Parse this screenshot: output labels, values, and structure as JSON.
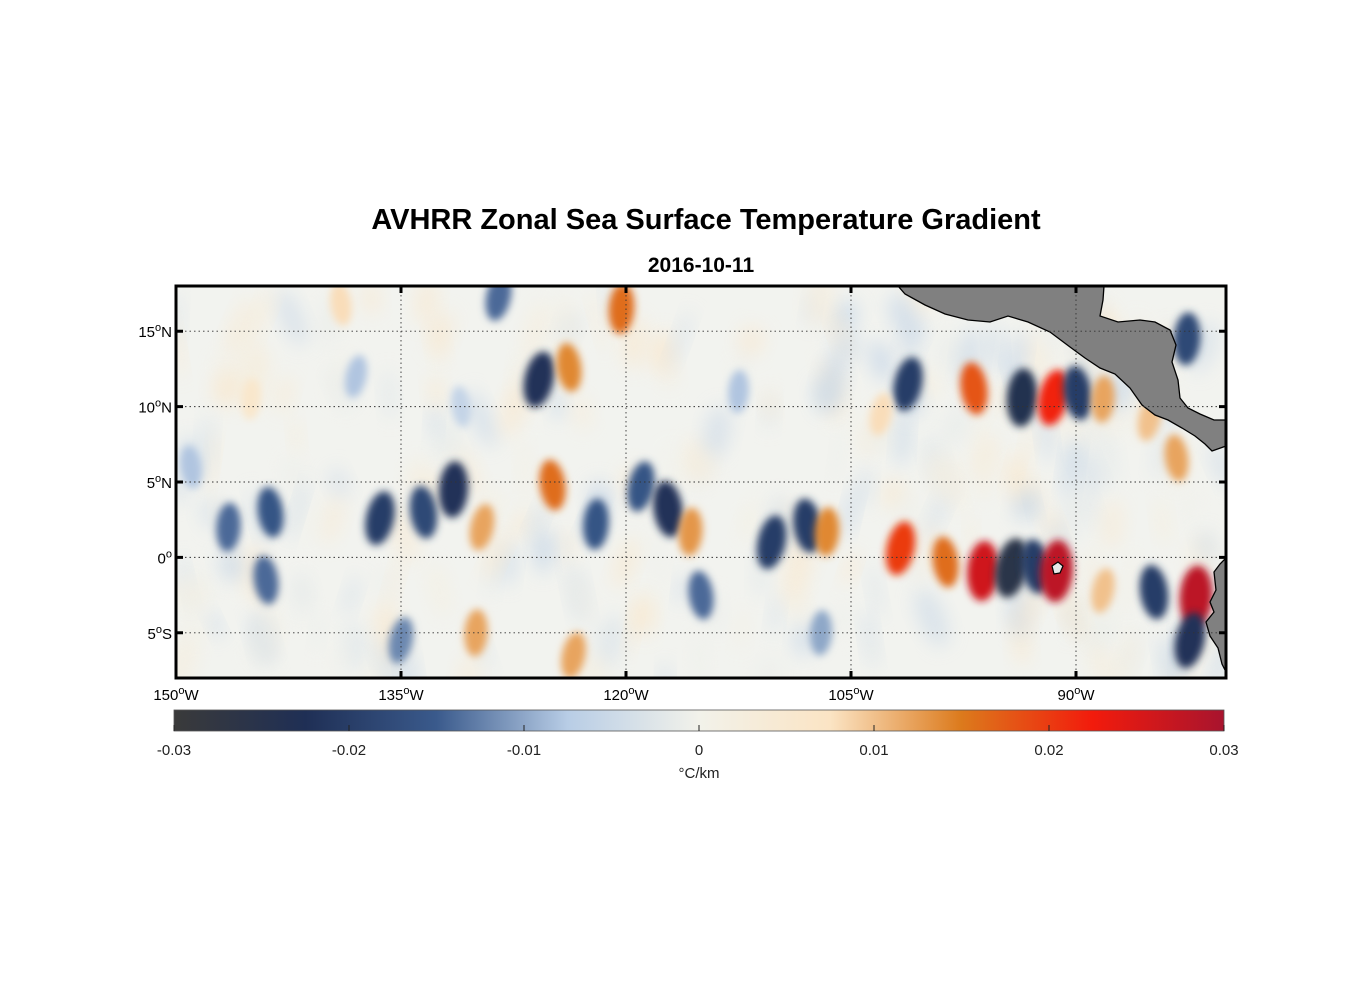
{
  "figure": {
    "title": "AVHRR Zonal Sea Surface Temperature Gradient",
    "subtitle": "2016-10-11"
  },
  "axes": {
    "lat_ticks": [
      {
        "value": 15,
        "text": "15",
        "hemi": "N"
      },
      {
        "value": 10,
        "text": "10",
        "hemi": "N"
      },
      {
        "value": 5,
        "text": "5",
        "hemi": "N"
      },
      {
        "value": 0,
        "text": "0",
        "hemi": ""
      },
      {
        "value": -5,
        "text": "5",
        "hemi": "S"
      }
    ],
    "lon_ticks": [
      {
        "value": -150,
        "text": "150",
        "hemi": "W"
      },
      {
        "value": -135,
        "text": "135",
        "hemi": "W"
      },
      {
        "value": -120,
        "text": "120",
        "hemi": "W"
      },
      {
        "value": -105,
        "text": "105",
        "hemi": "W"
      },
      {
        "value": -90,
        "text": "90",
        "hemi": "W"
      }
    ],
    "lon_range": [
      -150,
      -80
    ],
    "lat_range": [
      -8,
      18
    ],
    "grid": "dotted"
  },
  "colorbar": {
    "ticks": [
      {
        "value": -0.03,
        "text": "-0.03"
      },
      {
        "value": -0.02,
        "text": "-0.02"
      },
      {
        "value": -0.01,
        "text": "-0.01"
      },
      {
        "value": 0,
        "text": "0"
      },
      {
        "value": 0.01,
        "text": "0.01"
      },
      {
        "value": 0.02,
        "text": "0.02"
      },
      {
        "value": 0.03,
        "text": "0.03"
      }
    ],
    "range": [
      -0.03,
      0.03
    ],
    "unit": "°C/km",
    "colors": [
      "#3a3a3a",
      "#1f2f55",
      "#3a5a8c",
      "#b8cde6",
      "#f2f2ea",
      "#fbe4c4",
      "#dc7a1c",
      "#f21b0c",
      "#a8142e"
    ]
  },
  "land_color": "#808080",
  "features": [
    {
      "lon": -125.8,
      "lat": 11.8,
      "v": -0.022
    },
    {
      "lon": -123.8,
      "lat": 12.6,
      "v": 0.014
    },
    {
      "lon": -120.3,
      "lat": 16.5,
      "v": 0.016
    },
    {
      "lon": -128.5,
      "lat": 17.3,
      "v": -0.014
    },
    {
      "lon": -139.0,
      "lat": 16.8,
      "v": 0.008
    },
    {
      "lon": -112.5,
      "lat": 11.0,
      "v": -0.008
    },
    {
      "lon": -101.2,
      "lat": 11.5,
      "v": -0.02
    },
    {
      "lon": -96.8,
      "lat": 11.2,
      "v": 0.018
    },
    {
      "lon": -93.6,
      "lat": 10.6,
      "v": -0.024
    },
    {
      "lon": -91.5,
      "lat": 10.6,
      "v": 0.022
    },
    {
      "lon": -89.9,
      "lat": 10.9,
      "v": -0.02
    },
    {
      "lon": -88.2,
      "lat": 10.5,
      "v": 0.012
    },
    {
      "lon": -85.1,
      "lat": 9.2,
      "v": 0.01
    },
    {
      "lon": -83.3,
      "lat": 6.6,
      "v": 0.012
    },
    {
      "lon": -82.6,
      "lat": 14.5,
      "v": -0.018
    },
    {
      "lon": -103.0,
      "lat": 9.5,
      "v": 0.008
    },
    {
      "lon": -143.7,
      "lat": 3.0,
      "v": -0.016
    },
    {
      "lon": -146.5,
      "lat": 2.0,
      "v": -0.014
    },
    {
      "lon": -136.4,
      "lat": 2.6,
      "v": -0.02
    },
    {
      "lon": -133.5,
      "lat": 3.0,
      "v": -0.018
    },
    {
      "lon": -131.5,
      "lat": 4.5,
      "v": -0.022
    },
    {
      "lon": -129.6,
      "lat": 2.0,
      "v": 0.012
    },
    {
      "lon": -124.9,
      "lat": 4.8,
      "v": 0.016
    },
    {
      "lon": -122.0,
      "lat": 2.2,
      "v": -0.016
    },
    {
      "lon": -119.0,
      "lat": 4.7,
      "v": -0.016
    },
    {
      "lon": -117.2,
      "lat": 3.2,
      "v": -0.022
    },
    {
      "lon": -115.7,
      "lat": 1.7,
      "v": 0.013
    },
    {
      "lon": -110.3,
      "lat": 1.0,
      "v": -0.02
    },
    {
      "lon": -107.9,
      "lat": 2.1,
      "v": -0.02
    },
    {
      "lon": -106.6,
      "lat": 1.7,
      "v": 0.014
    },
    {
      "lon": -101.7,
      "lat": 0.6,
      "v": 0.02
    },
    {
      "lon": -98.7,
      "lat": -0.3,
      "v": 0.016
    },
    {
      "lon": -96.2,
      "lat": -0.9,
      "v": 0.026
    },
    {
      "lon": -94.3,
      "lat": -0.7,
      "v": -0.026
    },
    {
      "lon": -92.7,
      "lat": -0.6,
      "v": -0.02
    },
    {
      "lon": -91.3,
      "lat": -0.9,
      "v": 0.028
    },
    {
      "lon": -88.2,
      "lat": -2.2,
      "v": 0.01
    },
    {
      "lon": -84.8,
      "lat": -2.3,
      "v": -0.02
    },
    {
      "lon": -82.0,
      "lat": -2.6,
      "v": 0.028
    },
    {
      "lon": -82.4,
      "lat": -5.5,
      "v": -0.022
    },
    {
      "lon": -144.0,
      "lat": -1.5,
      "v": -0.014
    },
    {
      "lon": -130.0,
      "lat": -5.0,
      "v": 0.012
    },
    {
      "lon": -123.5,
      "lat": -6.5,
      "v": 0.012
    },
    {
      "lon": -115.0,
      "lat": -2.5,
      "v": -0.014
    },
    {
      "lon": -107.0,
      "lat": -5.0,
      "v": -0.01
    },
    {
      "lon": -135.0,
      "lat": -5.5,
      "v": -0.012
    },
    {
      "lon": -149.0,
      "lat": 6.0,
      "v": -0.008
    },
    {
      "lon": -145.0,
      "lat": 10.5,
      "v": 0.006
    },
    {
      "lon": -138.0,
      "lat": 12.0,
      "v": -0.008
    },
    {
      "lon": -131.0,
      "lat": 10.0,
      "v": -0.006
    }
  ]
}
